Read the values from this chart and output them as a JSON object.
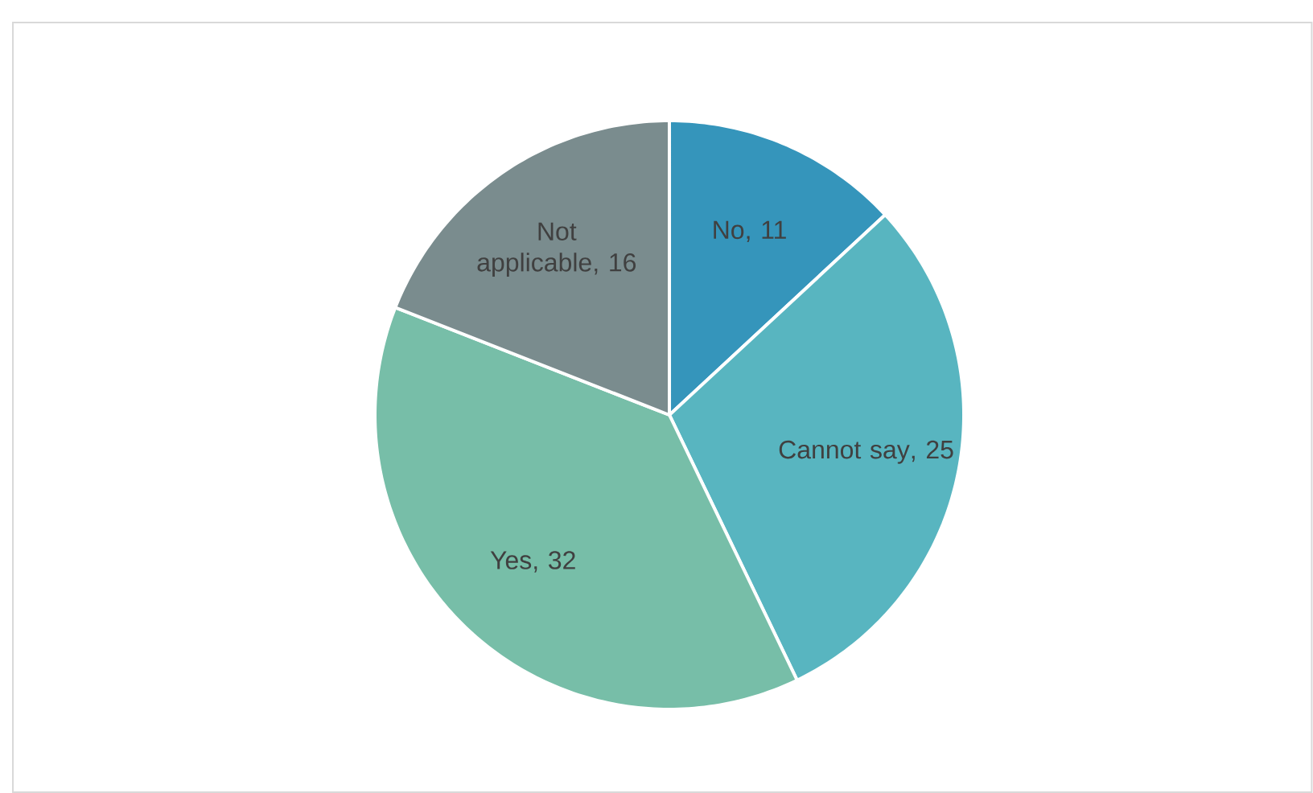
{
  "chart_data": {
    "type": "pie",
    "categories": [
      "No",
      "Cannot say",
      "Yes",
      "Not applicable"
    ],
    "values": [
      11,
      25,
      32,
      16
    ],
    "colors": [
      "#3595bb",
      "#58b5c0",
      "#77bea8",
      "#7a8c8e"
    ],
    "value_labels": [
      ", 11",
      ", 25",
      ", 32",
      ", 16"
    ],
    "data_labels": true
  }
}
